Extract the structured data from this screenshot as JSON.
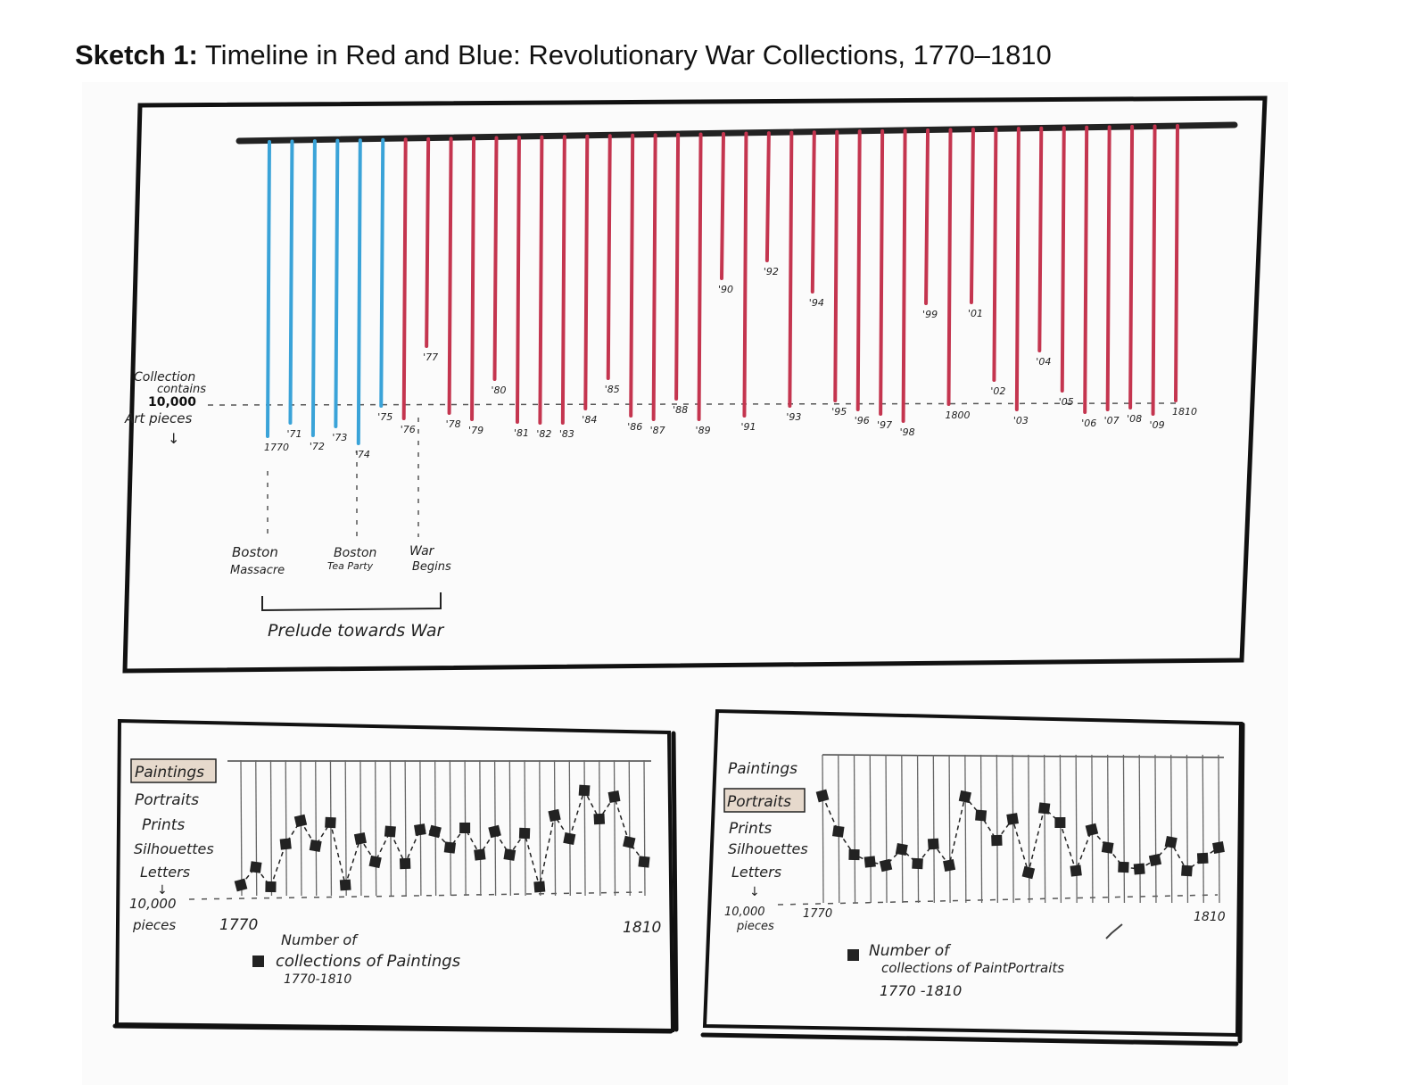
{
  "title": {
    "bold": "Sketch 1:",
    "text": " Timeline in Red and Blue: Revolutionary War Collections, 1770–1810"
  },
  "colors": {
    "prelude": "#3aa3d8",
    "war": "#c4354f",
    "frame": "#111111"
  },
  "main": {
    "threshold_label": [
      "Collection",
      "contains",
      "10,000",
      "Art pieces",
      "↓"
    ],
    "line_labels": [
      "1770",
      "'71",
      "'72",
      "'73",
      "'74",
      "'75",
      "'76",
      "'77",
      "'78",
      "'79",
      "'80",
      "'81",
      "'82",
      "'83",
      "'84",
      "'85",
      "'86",
      "'87",
      "'88",
      "'89",
      "'90",
      "'91",
      "'92",
      "'93",
      "'94",
      "'95",
      "'96",
      "'97",
      "'98",
      "'99",
      "1800",
      "'01",
      "'02",
      "'03",
      "'04",
      "'05",
      "'06",
      "'07",
      "'08",
      "'09",
      "1810"
    ],
    "events": [
      {
        "line1": "Boston",
        "line2": "Massacre"
      },
      {
        "line1": "Boston",
        "line2": "Tea Party"
      },
      {
        "line1": "War",
        "line2": "Begins"
      }
    ],
    "bracket_label": "Prelude towards War"
  },
  "panel_left": {
    "categories": [
      "Paintings",
      "Portraits",
      "Prints",
      "Silhouettes",
      "Letters"
    ],
    "highlight": "Paintings",
    "threshold_label": [
      "10,000",
      "pieces"
    ],
    "axis_start": "1770",
    "axis_end": "1810",
    "legend": [
      "Number of",
      "collections of Paintings",
      "1770-1810"
    ]
  },
  "panel_right": {
    "categories": [
      "Paintings",
      "Portraits",
      "Prints",
      "Silhouettes",
      "Letters"
    ],
    "highlight": "Portraits",
    "threshold_label": [
      "10,000",
      "pieces"
    ],
    "axis_start": "1770",
    "axis_end": "1810",
    "legend": [
      "Number of",
      "collections of PaintPortraits",
      "1770 -1810"
    ]
  }
}
